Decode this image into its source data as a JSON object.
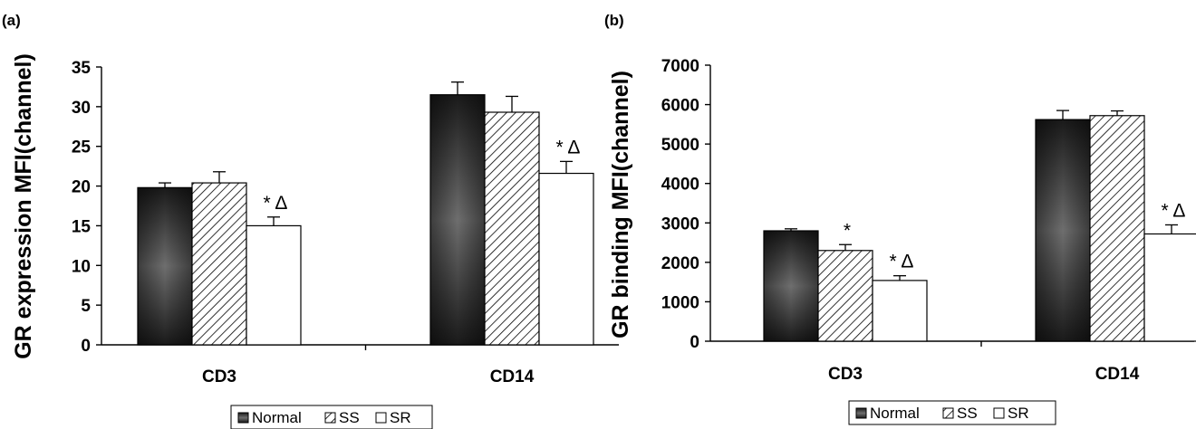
{
  "chart_data": [
    {
      "panel": "(a)",
      "type": "bar",
      "ylabel": "GR expression MFI(channel)",
      "ylim": [
        0,
        35
      ],
      "yticks": [
        0,
        5,
        10,
        15,
        20,
        25,
        30,
        35
      ],
      "categories": [
        "CD3",
        "CD14"
      ],
      "series": [
        {
          "name": "Normal",
          "values": [
            19.8,
            31.5
          ],
          "errors": [
            0.6,
            1.6
          ]
        },
        {
          "name": "SS",
          "values": [
            20.4,
            29.3
          ],
          "errors": [
            1.4,
            2.0
          ]
        },
        {
          "name": "SR",
          "values": [
            15.0,
            21.6
          ],
          "errors": [
            1.1,
            1.5
          ]
        }
      ],
      "annotations": [
        {
          "category": "CD3",
          "series": "SR",
          "text": "* Δ"
        },
        {
          "category": "CD14",
          "series": "SR",
          "text": "* Δ"
        }
      ],
      "legend": {
        "position": "bottom",
        "entries": [
          "Normal",
          "SS",
          "SR"
        ]
      }
    },
    {
      "panel": "(b)",
      "type": "bar",
      "ylabel": "GR binding MFI(channel)",
      "ylim": [
        0,
        7000
      ],
      "yticks": [
        0,
        1000,
        2000,
        3000,
        4000,
        5000,
        6000,
        7000
      ],
      "categories": [
        "CD3",
        "CD14"
      ],
      "series": [
        {
          "name": "Normal",
          "values": [
            2800,
            5620
          ],
          "errors": [
            50,
            230
          ]
        },
        {
          "name": "SS",
          "values": [
            2300,
            5720
          ],
          "errors": [
            150,
            120
          ]
        },
        {
          "name": "SR",
          "values": [
            1540,
            2720
          ],
          "errors": [
            120,
            230
          ]
        }
      ],
      "annotations": [
        {
          "category": "CD3",
          "series": "SS",
          "text": "*"
        },
        {
          "category": "CD3",
          "series": "SR",
          "text": "* Δ"
        },
        {
          "category": "CD14",
          "series": "SR",
          "text": "* Δ"
        }
      ],
      "legend": {
        "position": "bottom",
        "entries": [
          "Normal",
          "SS",
          "SR"
        ]
      }
    }
  ]
}
